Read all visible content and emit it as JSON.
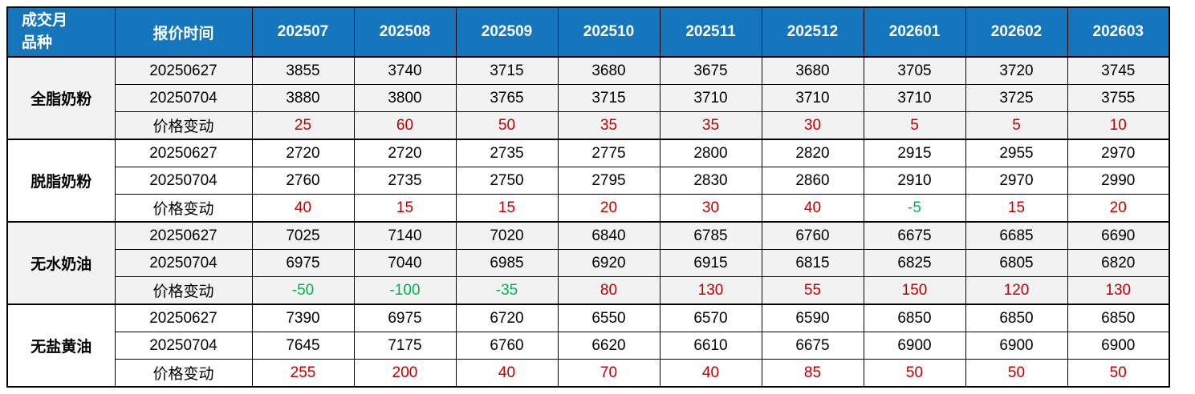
{
  "colors": {
    "header_bg": "#1576BE",
    "header_text": "#ffffff",
    "positive_change": "#C00000",
    "negative_change": "#00B050",
    "band_bg": "#F2F2F2",
    "border": "#000000"
  },
  "table": {
    "corner": {
      "line1": "成交月",
      "line2": "品种"
    },
    "quote_time_header": "报价时间",
    "month_columns": [
      "202507",
      "202508",
      "202509",
      "202510",
      "202511",
      "202512",
      "202601",
      "202602",
      "202603"
    ],
    "change_row_label": "价格变动",
    "groups": [
      {
        "name": "全脂奶粉",
        "banded": true,
        "rows": [
          {
            "label": "20250627",
            "type": "price",
            "values": [
              3855,
              3740,
              3715,
              3680,
              3675,
              3680,
              3705,
              3720,
              3745
            ]
          },
          {
            "label": "20250704",
            "type": "price",
            "values": [
              3880,
              3800,
              3765,
              3715,
              3710,
              3710,
              3710,
              3725,
              3755
            ]
          },
          {
            "label": "价格变动",
            "type": "change",
            "values": [
              25,
              60,
              50,
              35,
              35,
              30,
              5,
              5,
              10
            ]
          }
        ]
      },
      {
        "name": "脱脂奶粉",
        "banded": false,
        "rows": [
          {
            "label": "20250627",
            "type": "price",
            "values": [
              2720,
              2720,
              2735,
              2775,
              2800,
              2820,
              2915,
              2955,
              2970
            ]
          },
          {
            "label": "20250704",
            "type": "price",
            "values": [
              2760,
              2735,
              2750,
              2795,
              2830,
              2860,
              2910,
              2970,
              2990
            ]
          },
          {
            "label": "价格变动",
            "type": "change",
            "values": [
              40,
              15,
              15,
              20,
              30,
              40,
              -5,
              15,
              20
            ]
          }
        ]
      },
      {
        "name": "无水奶油",
        "banded": true,
        "rows": [
          {
            "label": "20250627",
            "type": "price",
            "values": [
              7025,
              7140,
              7020,
              6840,
              6785,
              6760,
              6675,
              6685,
              6690
            ]
          },
          {
            "label": "20250704",
            "type": "price",
            "values": [
              6975,
              7040,
              6985,
              6920,
              6915,
              6815,
              6825,
              6805,
              6820
            ]
          },
          {
            "label": "价格变动",
            "type": "change",
            "values": [
              -50,
              -100,
              -35,
              80,
              130,
              55,
              150,
              120,
              130
            ]
          }
        ]
      },
      {
        "name": "无盐黄油",
        "banded": false,
        "rows": [
          {
            "label": "20250627",
            "type": "price",
            "values": [
              7390,
              6975,
              6720,
              6550,
              6570,
              6590,
              6850,
              6850,
              6850
            ]
          },
          {
            "label": "20250704",
            "type": "price",
            "values": [
              7645,
              7175,
              6760,
              6620,
              6610,
              6675,
              6900,
              6900,
              6900
            ]
          },
          {
            "label": "价格变动",
            "type": "change",
            "values": [
              255,
              200,
              40,
              70,
              40,
              85,
              50,
              50,
              50
            ]
          }
        ]
      }
    ],
    "layout": {
      "col_width_product": 134,
      "col_width_quote_time": 171,
      "col_width_month": 127
    }
  }
}
